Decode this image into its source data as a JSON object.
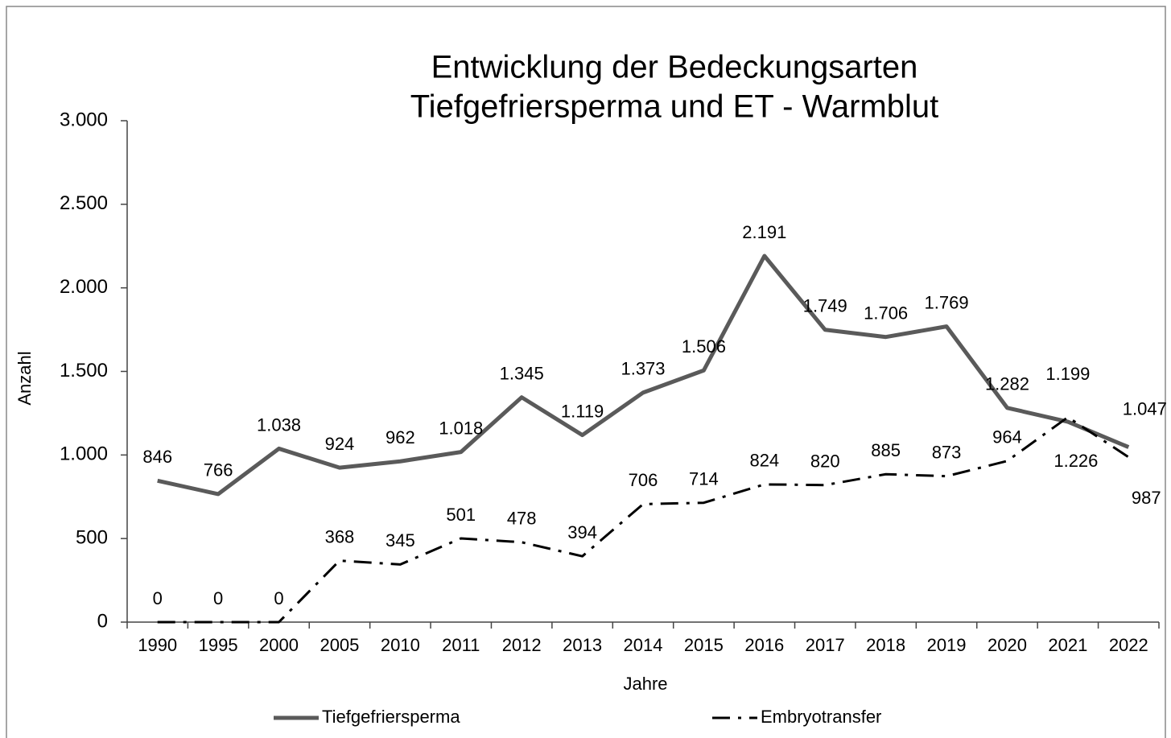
{
  "chart_data": {
    "type": "line",
    "title": [
      "Entwicklung der Bedeckungsarten",
      "Tiefgefriersperma und ET - Warmblut"
    ],
    "x_label": "Jahre",
    "y_label": "Anzahl",
    "categories": [
      "1990",
      "1995",
      "2000",
      "2005",
      "2010",
      "2011",
      "2012",
      "2013",
      "2014",
      "2015",
      "2016",
      "2017",
      "2018",
      "2019",
      "2020",
      "2021",
      "2022"
    ],
    "series": [
      {
        "name": "Tiefgefriersperma",
        "color": "#5a5a5a",
        "style": "solid",
        "values": [
          846,
          766,
          1038,
          924,
          962,
          1018,
          1345,
          1119,
          1373,
          1506,
          2191,
          1749,
          1706,
          1769,
          1282,
          1199,
          1047
        ],
        "value_labels": [
          "846",
          "766",
          "1.038",
          "924",
          "962",
          "1.018",
          "1.345",
          "1.119",
          "1.373",
          "1.506",
          "2.191",
          "1.749",
          "1.706",
          "1.769",
          "1.282",
          "1.199",
          "1.047"
        ]
      },
      {
        "name": "Embryotransfer",
        "color": "#000000",
        "style": "dashdot",
        "values": [
          0,
          0,
          0,
          368,
          345,
          501,
          478,
          394,
          706,
          714,
          824,
          820,
          885,
          873,
          964,
          1226,
          987
        ],
        "value_labels": [
          "0",
          "0",
          "0",
          "368",
          "345",
          "501",
          "478",
          "394",
          "706",
          "714",
          "824",
          "820",
          "885",
          "873",
          "964",
          "1.226",
          "987"
        ]
      }
    ],
    "ylim": [
      0,
      3000
    ],
    "yticks": [
      0,
      500,
      {
        "value": 1000,
        "label": "1.000"
      },
      {
        "value": 1500,
        "label": "1.500"
      },
      {
        "value": 2000,
        "label": "2.000"
      },
      {
        "value": 2500,
        "label": "2.500"
      },
      {
        "value": 3000,
        "label": "3.000"
      }
    ],
    "legend": "bottom"
  }
}
